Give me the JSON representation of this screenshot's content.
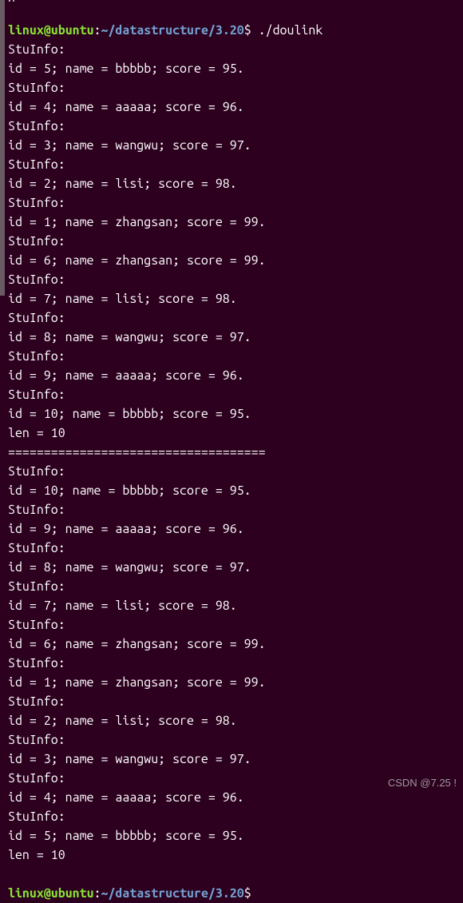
{
  "colors": {
    "background": "#2c001e",
    "text": "#ffffff",
    "user_host": "#8ae234",
    "path": "#729fcf",
    "scrollbar": "#6a5a62",
    "watermark": "#bdbdbd"
  },
  "prompt": {
    "user": "linux",
    "at": "@",
    "host": "ubuntu",
    "colon": ":",
    "path": "~/datastructure/3.20",
    "dollar": "$"
  },
  "command": "./doulink",
  "top_fragment": "g                          ",
  "output_lines": [
    "StuInfo:",
    "id = 5; name = bbbbb; score = 95.",
    "StuInfo:",
    "id = 4; name = aaaaa; score = 96.",
    "StuInfo:",
    "id = 3; name = wangwu; score = 97.",
    "StuInfo:",
    "id = 2; name = lisi; score = 98.",
    "StuInfo:",
    "id = 1; name = zhangsan; score = 99.",
    "StuInfo:",
    "id = 6; name = zhangsan; score = 99.",
    "StuInfo:",
    "id = 7; name = lisi; score = 98.",
    "StuInfo:",
    "id = 8; name = wangwu; score = 97.",
    "StuInfo:",
    "id = 9; name = aaaaa; score = 96.",
    "StuInfo:",
    "id = 10; name = bbbbb; score = 95.",
    "len = 10",
    "====================================",
    "StuInfo:",
    "id = 10; name = bbbbb; score = 95.",
    "StuInfo:",
    "id = 9; name = aaaaa; score = 96.",
    "StuInfo:",
    "id = 8; name = wangwu; score = 97.",
    "StuInfo:",
    "id = 7; name = lisi; score = 98.",
    "StuInfo:",
    "id = 6; name = zhangsan; score = 99.",
    "StuInfo:",
    "id = 1; name = zhangsan; score = 99.",
    "StuInfo:",
    "id = 2; name = lisi; score = 98.",
    "StuInfo:",
    "id = 3; name = wangwu; score = 97.",
    "StuInfo:",
    "id = 4; name = aaaaa; score = 96.",
    "StuInfo:",
    "id = 5; name = bbbbb; score = 95.",
    "len = 10"
  ],
  "watermark": "CSDN @7.25 !"
}
